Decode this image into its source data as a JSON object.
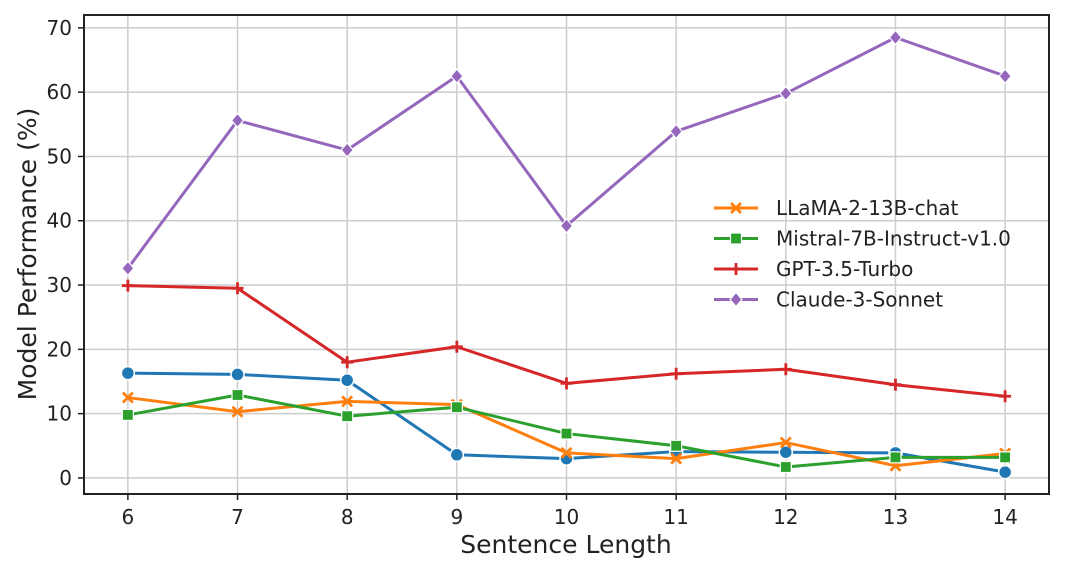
{
  "chart_data": {
    "type": "line",
    "title": "",
    "xlabel": "Sentence Length",
    "ylabel": "Model Performance (%)",
    "x": [
      6,
      7,
      8,
      9,
      10,
      11,
      12,
      13,
      14
    ],
    "x_ticks": [
      "6",
      "7",
      "8",
      "9",
      "10",
      "11",
      "12",
      "13",
      "14"
    ],
    "y_ticks": [
      "0",
      "10",
      "20",
      "30",
      "40",
      "50",
      "60",
      "70"
    ],
    "xlim": [
      5.6,
      14.4
    ],
    "ylim": [
      -2.5,
      72
    ],
    "grid": true,
    "legend_position": "center-right",
    "series": [
      {
        "name": "",
        "color": "#1f77b4",
        "marker": "circle",
        "in_legend": false,
        "values": [
          16.3,
          16.1,
          15.2,
          3.6,
          3.0,
          4.1,
          4.0,
          3.9,
          0.9
        ]
      },
      {
        "name": "LLaMA-2-13B-chat",
        "color": "#ff7f0e",
        "marker": "x",
        "in_legend": true,
        "values": [
          12.5,
          10.3,
          11.9,
          11.4,
          3.9,
          3.0,
          5.5,
          1.9,
          3.8
        ]
      },
      {
        "name": "Mistral-7B-Instruct-v1.0",
        "color": "#2ca02c",
        "marker": "square",
        "in_legend": true,
        "values": [
          9.8,
          12.9,
          9.6,
          11.0,
          6.9,
          5.0,
          1.7,
          3.2,
          3.2
        ]
      },
      {
        "name": "GPT-3.5-Turbo",
        "color": "#d62728",
        "marker": "plus",
        "in_legend": true,
        "values": [
          29.9,
          29.5,
          18.0,
          20.4,
          14.7,
          16.2,
          16.9,
          14.5,
          12.7
        ]
      },
      {
        "name": "Claude-3-Sonnet",
        "color": "#9467bd",
        "marker": "diamond",
        "in_legend": true,
        "values": [
          32.6,
          55.6,
          51.0,
          62.5,
          39.2,
          53.9,
          59.8,
          68.5,
          62.5
        ]
      }
    ]
  }
}
